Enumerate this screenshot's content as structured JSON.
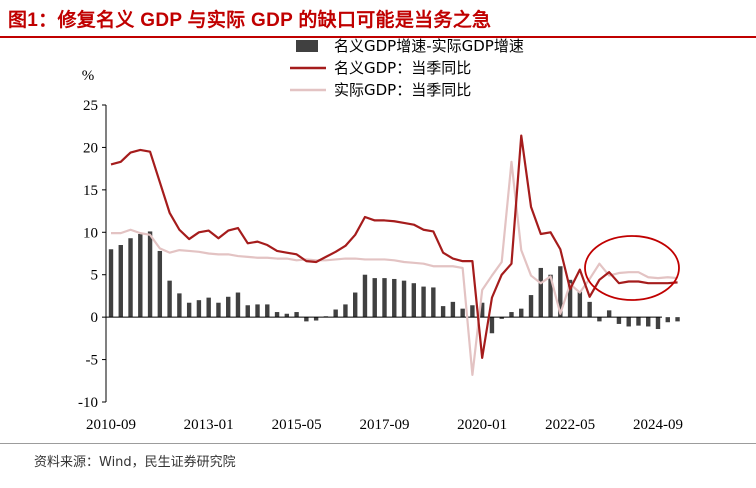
{
  "header": {
    "title": "图1：修复名义 GDP 与实际 GDP 的缺口可能是当务之急"
  },
  "footer": {
    "source": "资料来源：Wind，民生证券研究院"
  },
  "colors": {
    "title": "#c00000",
    "bars": "#404040",
    "nominal_line": "#a51c1c",
    "real_line": "#e3c3c3",
    "annotation_circle": "#c00000"
  },
  "chart_data": {
    "type": "bar+line",
    "title": "",
    "xlabel": "",
    "ylabel": "%",
    "ylim": [
      -10,
      25
    ],
    "yticks": [
      -10,
      -5,
      0,
      5,
      10,
      15,
      20,
      25
    ],
    "x_start": "2010-09",
    "x_end": "2024-09",
    "frequency": "quarterly",
    "xtick_labels": [
      "2010-09",
      "2013-01",
      "2015-05",
      "2017-09",
      "2020-01",
      "2022-05",
      "2024-09"
    ],
    "legend": {
      "placement": "top-center"
    },
    "grid": false,
    "series": [
      {
        "name": "名义GDP增速-实际GDP增速",
        "type": "bar",
        "values": [
          8.0,
          8.5,
          9.3,
          9.8,
          10.1,
          7.8,
          4.3,
          2.8,
          1.7,
          2.0,
          2.3,
          1.7,
          2.4,
          2.9,
          1.4,
          1.5,
          1.5,
          0.6,
          0.4,
          0.6,
          -0.5,
          -0.4,
          0.1,
          0.9,
          1.5,
          2.9,
          5.0,
          4.6,
          4.6,
          4.5,
          4.3,
          4.0,
          3.6,
          3.5,
          1.3,
          1.8,
          1.0,
          1.4,
          1.7,
          -1.9,
          -0.2,
          0.6,
          1.0,
          2.6,
          5.8,
          5.0,
          6.0,
          4.4,
          3.0,
          1.8,
          -0.5,
          0.8,
          -0.8,
          -1.1,
          -1.0,
          -1.1,
          -1.4,
          -0.6,
          -0.5
        ]
      },
      {
        "name": "名义GDP：当季同比",
        "type": "line",
        "values": [
          18.0,
          18.3,
          19.4,
          19.7,
          19.5,
          15.9,
          12.3,
          10.3,
          9.2,
          10.0,
          10.2,
          9.3,
          10.2,
          10.5,
          8.7,
          8.9,
          8.5,
          7.8,
          7.6,
          7.4,
          6.6,
          6.5,
          7.1,
          7.7,
          8.4,
          9.7,
          11.8,
          11.4,
          11.4,
          11.3,
          11.1,
          10.9,
          10.3,
          10.1,
          7.6,
          6.9,
          6.6,
          6.6,
          -4.8,
          2.3,
          5.0,
          6.3,
          21.4,
          13.0,
          9.8,
          10.0,
          8.0,
          3.3,
          5.6,
          2.4,
          4.4,
          5.3,
          4.0,
          4.2,
          4.2,
          4.0,
          4.0,
          4.0,
          4.1
        ]
      },
      {
        "name": "实际GDP：当季同比",
        "type": "line",
        "values": [
          9.9,
          9.9,
          10.3,
          9.9,
          9.7,
          8.1,
          7.6,
          7.9,
          7.8,
          7.7,
          7.5,
          7.4,
          7.4,
          7.2,
          7.1,
          7.0,
          7.0,
          6.9,
          6.9,
          6.7,
          6.8,
          6.7,
          6.7,
          6.8,
          6.9,
          6.9,
          6.8,
          6.8,
          6.8,
          6.7,
          6.5,
          6.4,
          6.3,
          6.0,
          6.0,
          6.0,
          5.8,
          -6.8,
          3.2,
          4.9,
          6.5,
          18.3,
          7.9,
          4.9,
          4.0,
          4.8,
          0.4,
          3.9,
          2.9,
          4.5,
          6.3,
          4.9,
          5.2,
          5.3,
          5.3,
          4.7,
          4.6,
          4.7,
          4.6
        ]
      }
    ],
    "annotations": [
      {
        "type": "ellipse",
        "around": "2023-2024 nominal and real GDP lines",
        "color": "#c00000"
      }
    ]
  }
}
